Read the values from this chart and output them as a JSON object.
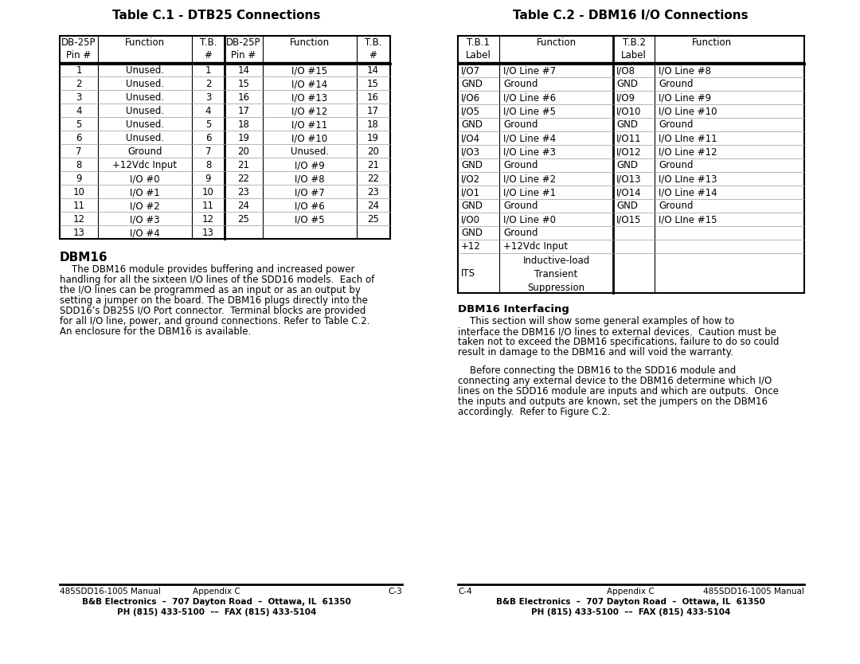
{
  "bg_color": "#ffffff",
  "table1_title": "Table C.1 - DTB25 Connections",
  "table1_left_data": [
    [
      "1",
      "Unused.",
      "1"
    ],
    [
      "2",
      "Unused.",
      "2"
    ],
    [
      "3",
      "Unused.",
      "3"
    ],
    [
      "4",
      "Unused.",
      "4"
    ],
    [
      "5",
      "Unused.",
      "5"
    ],
    [
      "6",
      "Unused.",
      "6"
    ],
    [
      "7",
      "Ground",
      "7"
    ],
    [
      "8",
      "+12Vdc Input",
      "8"
    ],
    [
      "9",
      "I/O #0",
      "9"
    ],
    [
      "10",
      "I/O #1",
      "10"
    ],
    [
      "11",
      "I/O #2",
      "11"
    ],
    [
      "12",
      "I/O #3",
      "12"
    ],
    [
      "13",
      "I/O #4",
      "13"
    ]
  ],
  "table1_right_data": [
    [
      "14",
      "I/O #15",
      "14"
    ],
    [
      "15",
      "I/O #14",
      "15"
    ],
    [
      "16",
      "I/O #13",
      "16"
    ],
    [
      "17",
      "I/O #12",
      "17"
    ],
    [
      "18",
      "I/O #11",
      "18"
    ],
    [
      "19",
      "I/O #10",
      "19"
    ],
    [
      "20",
      "Unused.",
      "20"
    ],
    [
      "21",
      "I/O #9",
      "21"
    ],
    [
      "22",
      "I/O #8",
      "22"
    ],
    [
      "23",
      "I/O #7",
      "23"
    ],
    [
      "24",
      "I/O #6",
      "24"
    ],
    [
      "25",
      "I/O #5",
      "25"
    ],
    [
      "",
      "",
      ""
    ]
  ],
  "table2_title": "Table C.2 - DBM16 I/O Connections",
  "table2_left_data": [
    [
      "I/O7",
      "I/O Line #7"
    ],
    [
      "GND",
      "Ground"
    ],
    [
      "I/O6",
      "I/O Line #6"
    ],
    [
      "I/O5",
      "I/O Line #5"
    ],
    [
      "GND",
      "Ground"
    ],
    [
      "I/O4",
      "I/O Line #4"
    ],
    [
      "I/O3",
      "I/O Line #3"
    ],
    [
      "GND",
      "Ground"
    ],
    [
      "I/O2",
      "I/O Line #2"
    ],
    [
      "I/O1",
      "I/O Line #1"
    ],
    [
      "GND",
      "Ground"
    ],
    [
      "I/O0",
      "I/O Line #0"
    ],
    [
      "GND",
      "Ground"
    ],
    [
      "+12",
      "+12Vdc Input"
    ],
    [
      "ITS",
      "Inductive-load\nTransient\nSuppression"
    ]
  ],
  "table2_right_data": [
    [
      "I/O8",
      "I/O Line #8"
    ],
    [
      "GND",
      "Ground"
    ],
    [
      "I/O9",
      "I/O Line #9"
    ],
    [
      "I/O10",
      "I/O Line #10"
    ],
    [
      "GND",
      "Ground"
    ],
    [
      "I/O11",
      "I/O LIne #11"
    ],
    [
      "I/O12",
      "I/O Line #12"
    ],
    [
      "GND",
      "Ground"
    ],
    [
      "I/O13",
      "I/O LIne #13"
    ],
    [
      "I/O14",
      "I/O Line #14"
    ],
    [
      "GND",
      "Ground"
    ],
    [
      "I/O15",
      "I/O LIne #15"
    ],
    [
      "",
      ""
    ],
    [
      "",
      ""
    ],
    [
      "",
      ""
    ]
  ],
  "dbm16_title": "DBM16",
  "dbm16_lines": [
    "    The DBM16 module provides buffering and increased power",
    "handling for all the sixteen I/O lines of the SDD16 models.  Each of",
    "the I/O lines can be programmed as an input or as an output by",
    "setting a jumper on the board. The DBM16 plugs directly into the",
    "SDD16’s DB25S I/O Port connector.  Terminal blocks are provided",
    "for all I/O line, power, and ground connections. Refer to Table C.2.",
    "An enclosure for the DBM16 is available."
  ],
  "interfacing_title": "DBM16 Interfacing",
  "interfacing_lines1": [
    "    This section will show some general examples of how to",
    "interface the DBM16 I/O lines to external devices.  Caution must be",
    "taken not to exceed the DBM16 specifications, failure to do so could",
    "result in damage to the DBM16 and will void the warranty."
  ],
  "interfacing_lines2": [
    "    Before connecting the DBM16 to the SDD16 module and",
    "connecting any external device to the DBM16 determine which I/O",
    "lines on the SDD16 module are inputs and which are outputs.  Once",
    "the inputs and outputs are known, set the jumpers on the DBM16",
    "accordingly.  Refer to Figure C.2."
  ],
  "footer_left_col1": "485SDD16-1005 Manual",
  "footer_left_col2": "Appendix C",
  "footer_left_col3": "C-3",
  "footer_left_line2": "B&B Electronics  –  707 Dayton Road  –  Ottawa, IL  61350",
  "footer_left_line3": "PH (815) 433-5100  ––  FAX (815) 433-5104",
  "footer_right_col1": "C-4",
  "footer_right_col2": "Appendix C",
  "footer_right_col3": "485SDD16-1005 Manual",
  "footer_right_line2": "B&B Electronics  –  707 Dayton Road  –  Ottawa, IL  61350",
  "footer_right_line3": "PH (815) 433-5100  ––  FAX (815) 433-5104"
}
